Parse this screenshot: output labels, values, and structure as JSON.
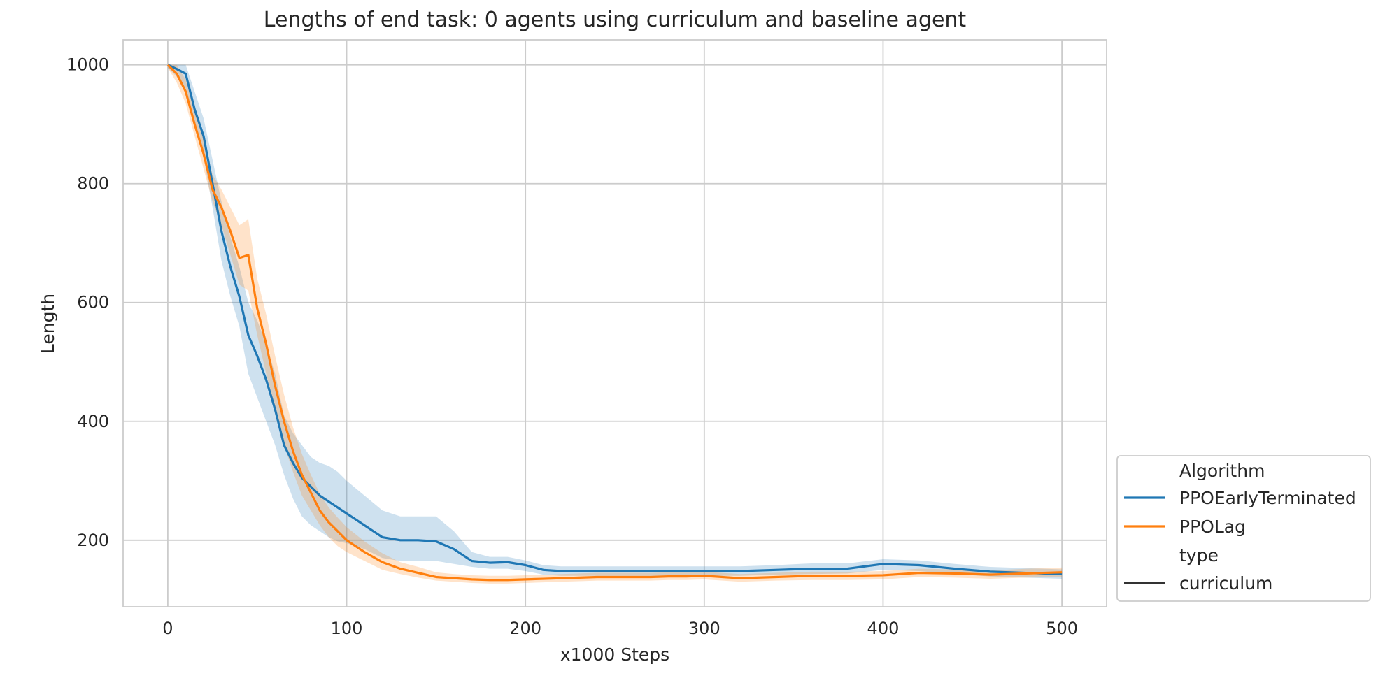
{
  "chart_data": {
    "type": "line",
    "title": "Lengths of end task: 0 agents using curriculum and baseline agent",
    "xlabel": "x1000 Steps",
    "ylabel": "Length",
    "xlim": [
      -25,
      525
    ],
    "ylim": [
      88,
      1042
    ],
    "xticks": [
      0,
      100,
      200,
      300,
      400,
      500
    ],
    "yticks": [
      200,
      400,
      600,
      800,
      1000
    ],
    "grid": true,
    "legend_placement": "lower-right-outside",
    "legend": {
      "hue_title": "Algorithm",
      "style_title": "type",
      "style_entries": [
        {
          "label": "curriculum",
          "color": "#333333"
        }
      ]
    },
    "x": [
      0,
      5,
      10,
      15,
      20,
      25,
      30,
      35,
      40,
      45,
      50,
      55,
      60,
      65,
      70,
      75,
      80,
      85,
      90,
      95,
      100,
      110,
      120,
      130,
      140,
      150,
      160,
      170,
      180,
      190,
      200,
      210,
      220,
      230,
      240,
      250,
      260,
      270,
      280,
      290,
      300,
      320,
      340,
      360,
      380,
      400,
      420,
      440,
      460,
      480,
      500
    ],
    "series": [
      {
        "name": "PPOEarlyTerminated",
        "color": "#1f77b4",
        "values": [
          1000,
          993,
          985,
          925,
          880,
          800,
          720,
          660,
          610,
          545,
          510,
          470,
          420,
          360,
          330,
          305,
          290,
          275,
          265,
          255,
          245,
          225,
          205,
          200,
          200,
          198,
          185,
          165,
          162,
          163,
          158,
          150,
          148,
          148,
          148,
          148,
          148,
          148,
          148,
          148,
          148,
          148,
          150,
          152,
          152,
          160,
          158,
          152,
          147,
          145,
          143
        ],
        "ci_lower": [
          995,
          980,
          960,
          895,
          845,
          760,
          670,
          610,
          560,
          480,
          440,
          400,
          360,
          310,
          270,
          240,
          225,
          215,
          205,
          198,
          195,
          185,
          170,
          165,
          165,
          165,
          160,
          155,
          152,
          152,
          148,
          142,
          140,
          140,
          140,
          140,
          140,
          140,
          140,
          140,
          140,
          140,
          142,
          143,
          144,
          150,
          148,
          143,
          139,
          137,
          135
        ],
        "ci_upper": [
          1000,
          1000,
          1000,
          955,
          910,
          840,
          770,
          710,
          660,
          600,
          570,
          530,
          480,
          410,
          380,
          360,
          340,
          330,
          325,
          315,
          300,
          275,
          250,
          240,
          240,
          240,
          215,
          180,
          172,
          172,
          166,
          158,
          156,
          156,
          156,
          156,
          156,
          156,
          156,
          156,
          156,
          156,
          158,
          161,
          161,
          168,
          166,
          160,
          155,
          153,
          151
        ]
      },
      {
        "name": "PPOLag",
        "color": "#ff7f0e",
        "values": [
          1000,
          985,
          955,
          900,
          850,
          790,
          760,
          720,
          675,
          680,
          590,
          530,
          460,
          400,
          350,
          310,
          280,
          250,
          230,
          215,
          200,
          180,
          163,
          152,
          145,
          138,
          136,
          134,
          133,
          133,
          134,
          135,
          136,
          137,
          138,
          138,
          138,
          138,
          139,
          139,
          140,
          136,
          138,
          140,
          140,
          141,
          145,
          144,
          142,
          144,
          146
        ],
        "ci_lower": [
          995,
          970,
          935,
          880,
          825,
          770,
          730,
          680,
          630,
          620,
          545,
          480,
          420,
          360,
          315,
          275,
          250,
          225,
          205,
          190,
          180,
          165,
          150,
          143,
          137,
          132,
          130,
          128,
          127,
          127,
          128,
          129,
          130,
          131,
          132,
          132,
          132,
          132,
          133,
          133,
          134,
          130,
          132,
          133,
          133,
          134,
          138,
          137,
          135,
          137,
          138
        ],
        "ci_upper": [
          1000,
          1000,
          975,
          920,
          875,
          815,
          790,
          760,
          730,
          740,
          640,
          580,
          510,
          445,
          390,
          345,
          310,
          278,
          255,
          238,
          222,
          198,
          178,
          163,
          155,
          146,
          143,
          141,
          140,
          140,
          141,
          142,
          143,
          144,
          145,
          145,
          145,
          145,
          146,
          146,
          147,
          143,
          145,
          147,
          147,
          148,
          152,
          151,
          149,
          152,
          154
        ]
      }
    ]
  }
}
